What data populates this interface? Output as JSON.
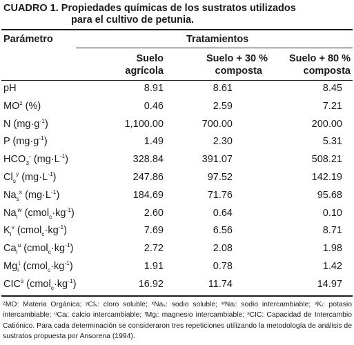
{
  "title": {
    "line1": "CUADRO 1. Propiedades químicas de los sustratos utilizados",
    "line2": "para el cultivo de petunia."
  },
  "header": {
    "parametro": "Parámetro",
    "tratamientos": "Tratamientos",
    "columns": [
      {
        "line1": "Suelo",
        "line2": "agrícola"
      },
      {
        "line1": "Suelo + 30 %",
        "line2": "composta"
      },
      {
        "line1": "Suelo + 80 %",
        "line2": "composta"
      }
    ]
  },
  "rows": [
    {
      "name": "pH",
      "values": [
        "8.91",
        "8.61",
        "8.45"
      ]
    },
    {
      "name": "MO",
      "sup": "z",
      "unit": " (%)",
      "values": [
        "0.46",
        "2.59",
        "7.21"
      ]
    },
    {
      "name": "N (mg·g",
      "unit_sup": "-1",
      "close": ")",
      "values": [
        "1,100.00",
        "700.00",
        "200.00"
      ]
    },
    {
      "name": "P (mg·g",
      "unit_sup": "-1",
      "close": ")",
      "values": [
        "1.49",
        "2.30",
        "5.31"
      ]
    },
    {
      "name": "HCO",
      "sub": "3",
      "sup": "-",
      "unit": " (mg·L",
      "unit_sup": "-1",
      "close": ")",
      "values": [
        "328.84",
        "391.07",
        "508.21"
      ]
    },
    {
      "name": "Cl",
      "sub": "s",
      "sup": "y",
      "unit": " (mg·L",
      "unit_sup": "-1",
      "close": ")",
      "values": [
        "247.86",
        "97.52",
        "142.19"
      ]
    },
    {
      "name": "Na",
      "sub": "s",
      "sup": "x",
      "unit": " (mg·L",
      "unit_sup": "-1",
      "close": ")",
      "values": [
        "184.69",
        "71.76",
        "95.68"
      ]
    },
    {
      "name": "Na",
      "sub": "i",
      "sup": "w",
      "unit": " (cmol",
      "unit_sub": "c",
      "unit2": "·kg",
      "unit_sup": "-1",
      "close": ")",
      "values": [
        "2.60",
        "0.64",
        "0.10"
      ]
    },
    {
      "name": "K",
      "sub": "i",
      "sup": "v",
      "unit": " (cmol",
      "unit_sub": "c",
      "unit2": "·kg",
      "unit_sup": "-1",
      "close": ")",
      "values": [
        "7.69",
        "6.56",
        "8.71"
      ]
    },
    {
      "name": "Ca",
      "sub": "i",
      "sup": "u",
      "unit": " (cmol",
      "unit_sub": "c",
      "unit2": "·kg",
      "unit_sup": "-1",
      "close": ")",
      "values": [
        "2.72",
        "2.08",
        "1.98"
      ]
    },
    {
      "name": "Mg",
      "sub": "i",
      "sup": "t",
      "unit": " (cmol",
      "unit_sub": "c",
      "unit2": "·kg",
      "unit_sup": "-1",
      "close": ")",
      "values": [
        "1.91",
        "0.78",
        "1.42"
      ]
    },
    {
      "name": "CIC",
      "sup": "s",
      "unit": " (cmol",
      "unit_sub": "c",
      "unit2": "·kg",
      "unit_sup": "-1",
      "close": ")",
      "values": [
        "16.92",
        "11.74",
        "14.97"
      ]
    }
  ],
  "footnote": "ᶻMO: Materia Orgánica; ʸClₛ: cloro soluble; ˣNaₛ: sodio soluble; ʷNaᵢ: sodio intercambiable; ᵛKᵢ: potasio intercambiable; ᵘCaᵢ: calcio intercambiable; ᵗMgᵢ: magnesio intercambiable; ˢCIC: Capacidad de Intercambio Catiónico. Para cada determinación se consideraron tres repeticiones utilizando la metodología de análisis de sustratos propuesta por Ansorena (1994)."
}
